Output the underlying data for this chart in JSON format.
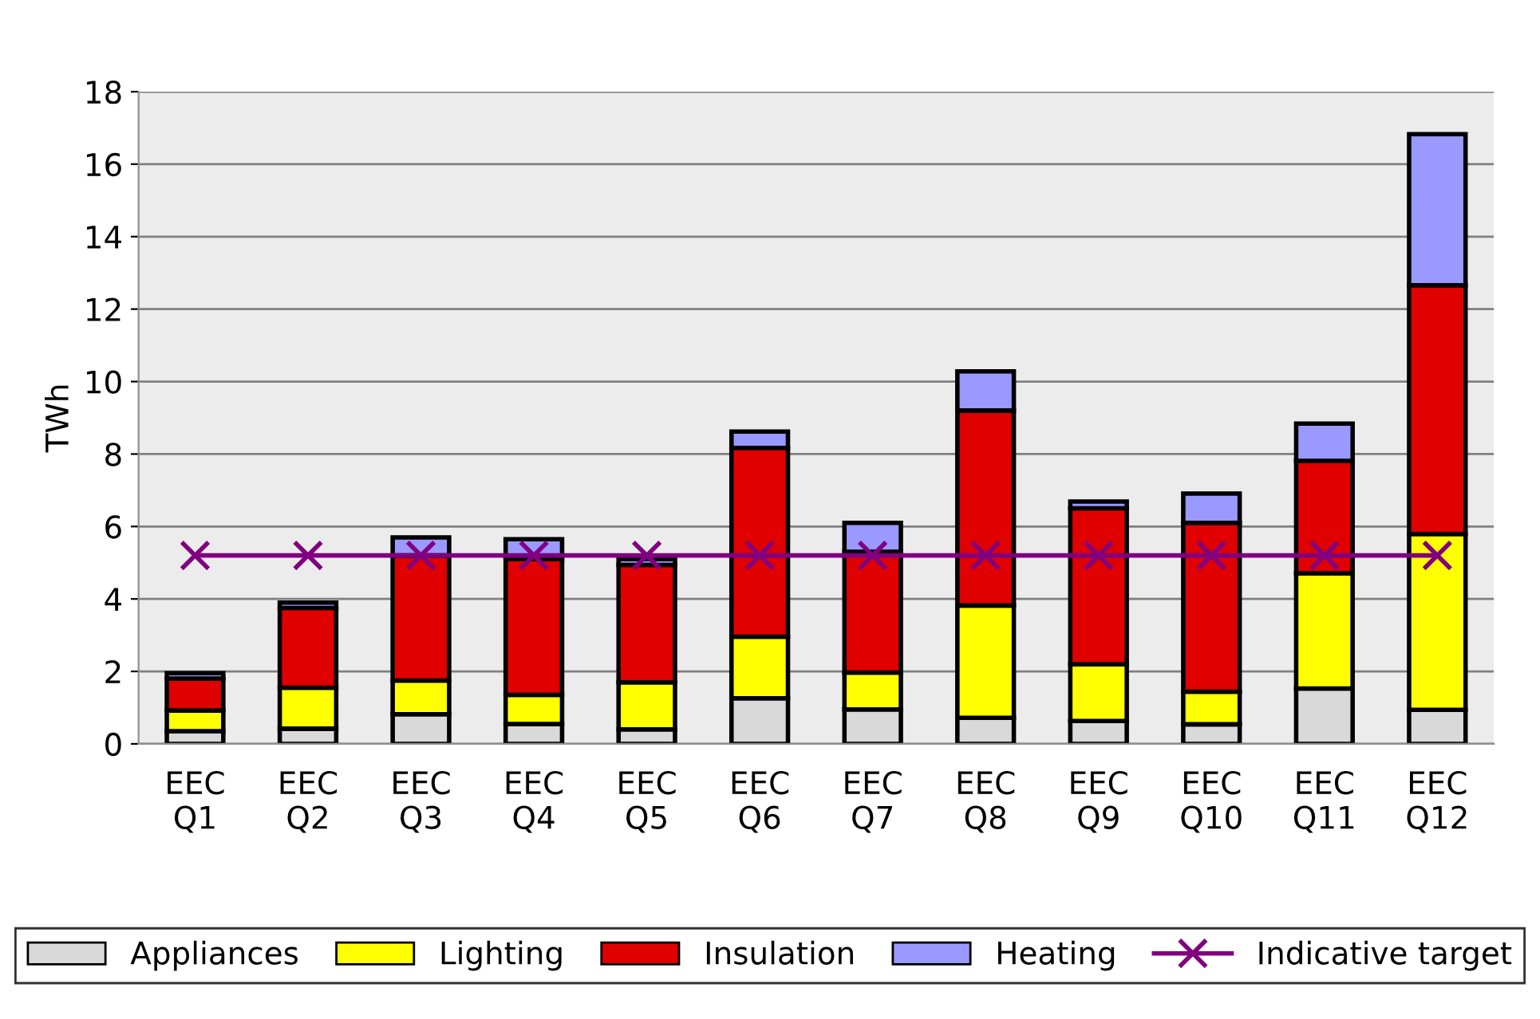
{
  "chart_data": {
    "type": "bar",
    "stacked": true,
    "ylabel": "TWh",
    "categories": [
      "EEC\nQ1",
      "EEC\nQ2",
      "EEC\nQ3",
      "EEC\nQ4",
      "EEC\nQ5",
      "EEC\nQ6",
      "EEC\nQ7",
      "EEC\nQ8",
      "EEC\nQ9",
      "EEC\nQ10",
      "EEC\nQ11",
      "EEC\nQ12"
    ],
    "series": [
      {
        "name": "Appliances",
        "color": "#d9d9d9",
        "values": [
          0.35,
          0.42,
          0.82,
          0.55,
          0.4,
          1.26,
          0.95,
          0.72,
          0.63,
          0.54,
          1.53,
          0.94
        ]
      },
      {
        "name": "Lighting",
        "color": "#ffff00",
        "values": [
          0.57,
          1.13,
          0.93,
          0.8,
          1.3,
          1.7,
          1.02,
          3.1,
          1.57,
          0.9,
          3.18,
          4.85
        ]
      },
      {
        "name": "Insulation",
        "color": "#e00000",
        "values": [
          0.88,
          2.2,
          3.45,
          3.75,
          3.24,
          5.21,
          3.33,
          5.38,
          4.3,
          4.66,
          3.1,
          6.87
        ]
      },
      {
        "name": "Heating",
        "color": "#9999ff",
        "values": [
          0.15,
          0.15,
          0.5,
          0.55,
          0.16,
          0.45,
          0.8,
          1.08,
          0.19,
          0.81,
          1.03,
          4.17
        ]
      },
      {
        "name": "Indicative target",
        "type": "line",
        "color": "#800080",
        "marker": "cross",
        "values": [
          5.2,
          5.2,
          5.2,
          5.2,
          5.2,
          5.2,
          5.2,
          5.2,
          5.2,
          5.2,
          5.2,
          5.2
        ]
      }
    ],
    "ylim": [
      0,
      18
    ],
    "yticks": [
      0,
      2,
      4,
      6,
      8,
      10,
      12,
      14,
      16,
      18
    ],
    "grid": "y",
    "legend": "bottom"
  }
}
